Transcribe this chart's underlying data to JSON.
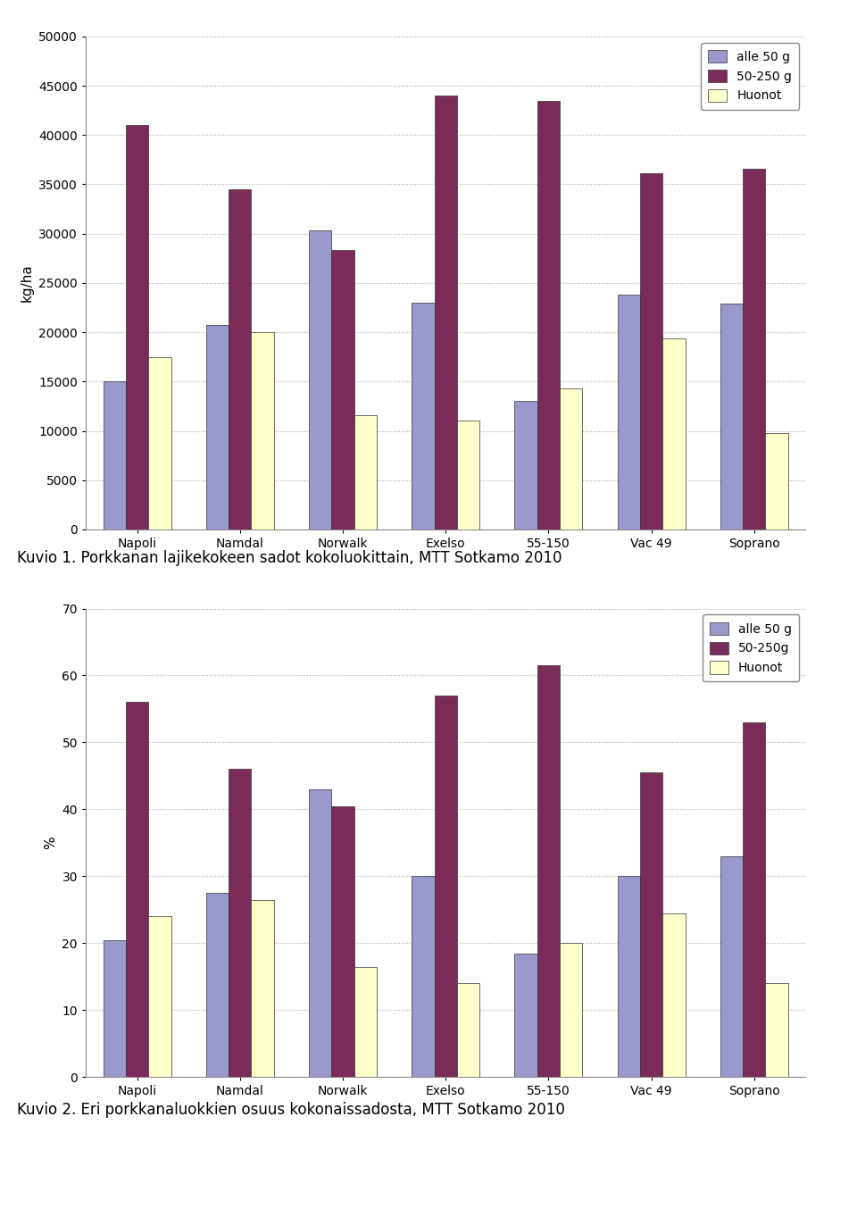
{
  "categories": [
    "Napoli",
    "Namdal",
    "Norwalk",
    "Exelso",
    "55-150",
    "Vac 49",
    "Soprano"
  ],
  "chart1": {
    "caption": "Kuvio 1. Porkkanan lajikekokeen sadot kokoluokittain, MTT Sotkamo 2010",
    "ylabel": "kg/ha",
    "ylim": [
      0,
      50000
    ],
    "yticks": [
      0,
      5000,
      10000,
      15000,
      20000,
      25000,
      30000,
      35000,
      40000,
      45000,
      50000
    ],
    "serie1": [
      15000,
      20700,
      30300,
      23000,
      13000,
      23800,
      22900
    ],
    "serie2": [
      41000,
      34500,
      28300,
      44000,
      43500,
      36100,
      36600
    ],
    "serie3": [
      17500,
      20000,
      11600,
      11000,
      14300,
      19400,
      9800
    ],
    "legend_labels": [
      "alle 50 g",
      "50-250 g",
      "Huonot"
    ]
  },
  "chart2": {
    "caption": "Kuvio 2. Eri porkkanaluokkien osuus kokonaissadosta, MTT Sotkamo 2010",
    "ylabel": "%",
    "ylim": [
      0,
      70
    ],
    "yticks": [
      0,
      10,
      20,
      30,
      40,
      50,
      60,
      70
    ],
    "serie1": [
      20.5,
      27.5,
      43.0,
      30.0,
      18.5,
      30.0,
      33.0
    ],
    "serie2": [
      56.0,
      46.0,
      40.5,
      57.0,
      61.5,
      45.5,
      53.0
    ],
    "serie3": [
      24.0,
      26.5,
      16.5,
      14.0,
      20.0,
      24.5,
      14.0
    ],
    "legend_labels": [
      "alle 50 g",
      "50-250g",
      "Huonot"
    ]
  },
  "bar_colors": [
    "#9999cc",
    "#7b2b5a",
    "#ffffcc"
  ],
  "bar_edgecolor": "#333333",
  "background_color": "#ffffff",
  "plot_bg_color": "#ffffff",
  "grid_color": "#aaaaaa",
  "caption_fontsize": 12,
  "axis_label_fontsize": 11,
  "tick_fontsize": 10,
  "legend_fontsize": 10,
  "bar_width": 0.22
}
